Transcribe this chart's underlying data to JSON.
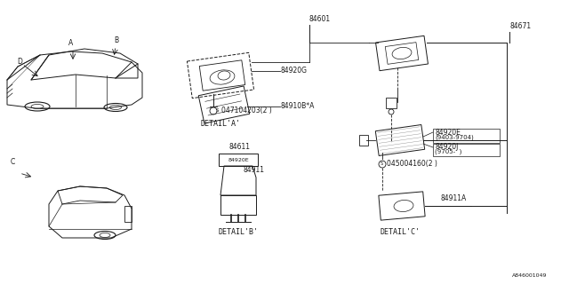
{
  "bg_color": "#ffffff",
  "line_color": "#1a1a1a",
  "diagram_code": "A846001049",
  "fs": 5.5,
  "labels": {
    "84601": "84601",
    "84671": "84671",
    "84920G": "84920G",
    "84910B": "84910B*A",
    "84611": "84611",
    "84920E": "84920E",
    "84911": "84911",
    "84920E_c": "84920E",
    "84920E_date": "(9403-9704)",
    "84920J": "84920J",
    "84920J_date": "(9705-  )",
    "screw_a": "047104203(2 )",
    "screw_c": "045004160(2 )",
    "84911A": "84911A",
    "detail_a": "DETAIL'A'",
    "detail_b": "DETAIL'B'",
    "detail_c": "DETAIL'C'",
    "A": "A",
    "B": "B",
    "C": "C",
    "D": "D"
  }
}
